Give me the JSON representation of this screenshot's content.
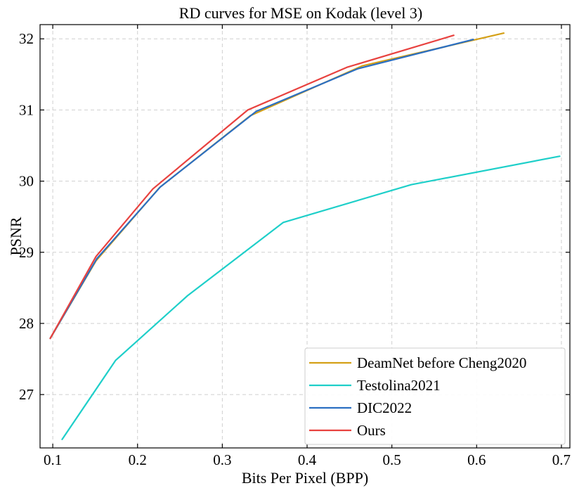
{
  "chart_data": {
    "type": "line",
    "title": "RD curves for MSE on Kodak (level 3)",
    "xlabel": "Bits Per Pixel (BPP)",
    "ylabel": "PSNR",
    "xlim": [
      0.085,
      0.71
    ],
    "ylim": [
      26.25,
      32.2
    ],
    "xticks": [
      0.1,
      0.2,
      0.3,
      0.4,
      0.5,
      0.6,
      0.7
    ],
    "yticks": [
      27,
      28,
      29,
      30,
      31,
      32
    ],
    "xtick_labels": [
      "0.1",
      "0.2",
      "0.3",
      "0.4",
      "0.5",
      "0.6",
      "0.7"
    ],
    "ytick_labels": [
      "27",
      "28",
      "29",
      "30",
      "31",
      "32"
    ],
    "grid": true,
    "legend_position": "bottom-right",
    "series": [
      {
        "name": "DeamNet before Cheng2020",
        "color": "#d4a017",
        "x": [
          0.097,
          0.151,
          0.226,
          0.333,
          0.465,
          0.632
        ],
        "y": [
          27.79,
          28.88,
          29.91,
          30.92,
          31.62,
          32.08
        ]
      },
      {
        "name": "Testolina2021",
        "color": "#1ecfc9",
        "x": [
          0.111,
          0.174,
          0.259,
          0.372,
          0.523,
          0.698
        ],
        "y": [
          26.37,
          27.48,
          28.39,
          29.42,
          29.95,
          30.35
        ]
      },
      {
        "name": "DIC2022",
        "color": "#2b6fc2",
        "x": [
          0.097,
          0.152,
          0.227,
          0.34,
          0.46,
          0.596
        ],
        "y": [
          27.79,
          28.91,
          29.92,
          30.98,
          31.58,
          31.99
        ]
      },
      {
        "name": "Ours",
        "color": "#e8423f",
        "x": [
          0.097,
          0.151,
          0.218,
          0.33,
          0.447,
          0.573
        ],
        "y": [
          27.79,
          28.94,
          29.89,
          31.0,
          31.6,
          32.05
        ]
      }
    ]
  }
}
